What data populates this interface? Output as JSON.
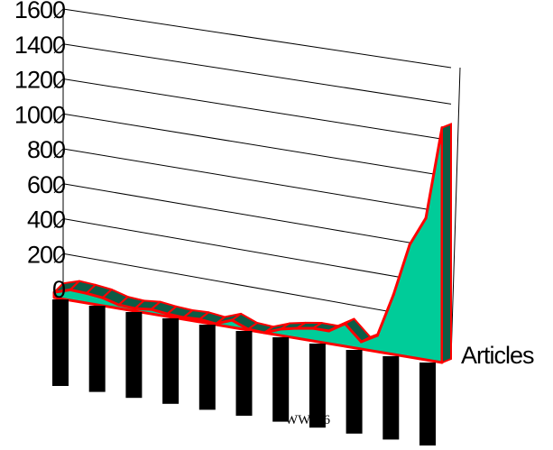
{
  "chart_data": {
    "type": "area",
    "subtype": "3d",
    "title": "",
    "xlabel": "",
    "ylabel": "",
    "ylim": [
      0,
      1600
    ],
    "yticks": [
      0,
      200,
      400,
      600,
      800,
      1000,
      1200,
      1400,
      1600
    ],
    "grid": true,
    "legend": "none",
    "series": [
      {
        "name": "Articles",
        "color": "#00cc99",
        "edge_color": "#ff0000",
        "values": [
          30,
          60,
          55,
          45,
          20,
          15,
          25,
          15,
          10,
          15,
          5,
          40,
          5,
          0,
          35,
          55,
          70,
          70,
          125,
          40,
          90,
          330,
          620,
          780,
          1290
        ]
      }
    ],
    "category_labels": [
      "",
      "",
      "",
      "",
      "",
      "",
      "",
      "",
      "",
      "",
      ""
    ],
    "footer": "WWW6",
    "colors": {
      "area_fill": "#00cc99",
      "area_dark": "#0d5c46",
      "edge": "#ff0000",
      "grid": "#000000",
      "category_bar": "#000000"
    }
  }
}
